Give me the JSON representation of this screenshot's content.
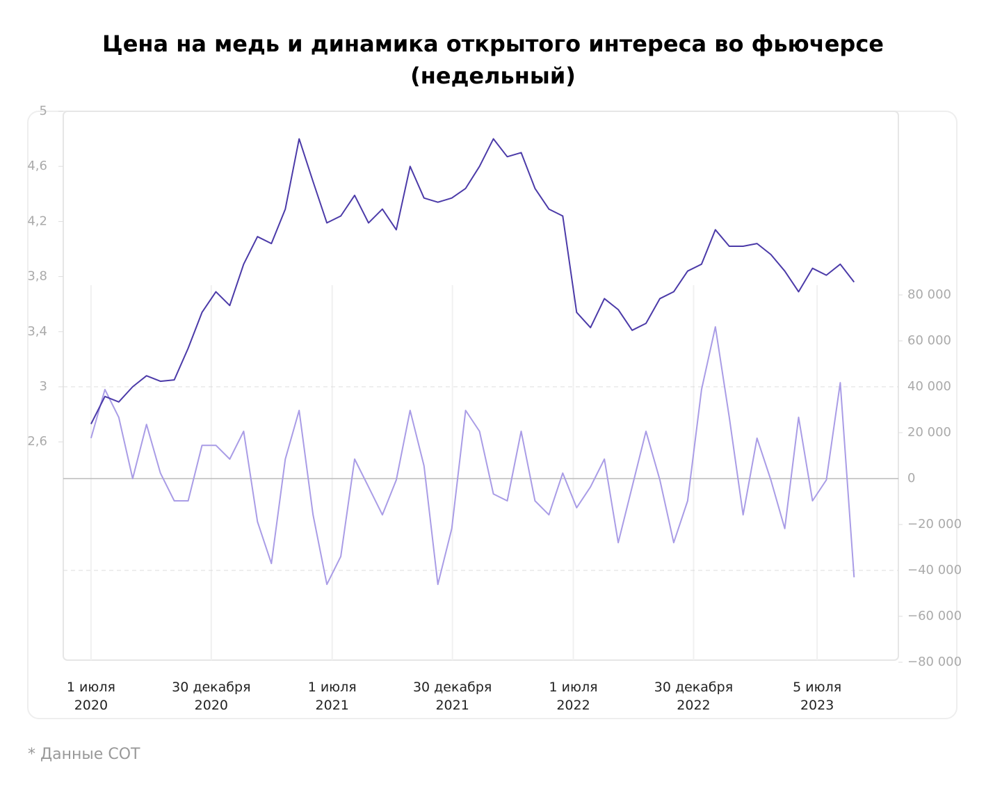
{
  "chart_data": {
    "type": "line",
    "title": "Цена на медь и динамика открытого интереса во фьючерсе (недельный)",
    "note": "* Данные COT",
    "x": [
      "2020-07-01",
      "2020-07-22",
      "2020-08-12",
      "2020-09-02",
      "2020-09-23",
      "2020-10-14",
      "2020-11-04",
      "2020-11-25",
      "2020-12-16",
      "2021-01-06",
      "2021-01-27",
      "2021-02-17",
      "2021-03-10",
      "2021-03-31",
      "2021-04-21",
      "2021-05-12",
      "2021-06-02",
      "2021-06-23",
      "2021-07-14",
      "2021-08-04",
      "2021-08-25",
      "2021-09-15",
      "2021-10-06",
      "2021-10-27",
      "2021-11-17",
      "2021-12-08",
      "2021-12-29",
      "2022-01-19",
      "2022-02-09",
      "2022-03-02",
      "2022-03-23",
      "2022-04-13",
      "2022-05-04",
      "2022-05-25",
      "2022-06-15",
      "2022-07-06",
      "2022-07-27",
      "2022-08-17",
      "2022-09-07",
      "2022-09-28",
      "2022-10-19",
      "2022-11-09",
      "2022-11-30",
      "2022-12-21",
      "2023-01-11",
      "2023-02-01",
      "2023-02-22",
      "2023-03-15",
      "2023-04-05",
      "2023-04-26",
      "2023-05-17",
      "2023-06-07",
      "2023-06-28",
      "2023-07-19",
      "2023-08-09",
      "2023-08-30"
    ],
    "xlim": [
      "2020-05-20",
      "2023-11-05"
    ],
    "xticks": [
      {
        "value": "2020-07-01",
        "label": "1 июля 2020"
      },
      {
        "value": "2020-12-30",
        "label": "30 декабря 2020"
      },
      {
        "value": "2021-07-01",
        "label": "1 июля 2021"
      },
      {
        "value": "2021-12-30",
        "label": "30 декабря 2021"
      },
      {
        "value": "2022-07-01",
        "label": "1 июля 2022"
      },
      {
        "value": "2022-12-30",
        "label": "30 декабря 2022"
      },
      {
        "value": "2023-07-05",
        "label": "5 июля 2023"
      }
    ],
    "ylim": [
      1,
      5
    ],
    "yticks": [
      {
        "value": 2.6,
        "label": "2,6"
      },
      3,
      {
        "value": 3.4,
        "label": "3,4"
      },
      {
        "value": 3.8,
        "label": "3,8"
      },
      {
        "value": 4.2,
        "label": "4,2"
      },
      {
        "value": 4.6,
        "label": "4,6"
      },
      5
    ],
    "y2lim": [
      -80000,
      160000
    ],
    "y2ticks": [
      {
        "value": -80000,
        "label": "−80 000"
      },
      {
        "value": -60000,
        "label": "−60 000"
      },
      {
        "value": -40000,
        "label": "−40 000"
      },
      {
        "value": -20000,
        "label": "−20 000"
      },
      0,
      {
        "value": 20000,
        "label": "20 000"
      },
      {
        "value": 40000,
        "label": "40 000"
      },
      {
        "value": 60000,
        "label": "60 000"
      },
      {
        "value": 80000,
        "label": "80 000"
      }
    ],
    "series": [
      {
        "color": "#4b3aa8",
        "values": [
          2.73,
          2.93,
          2.89,
          3.0,
          3.08,
          3.04,
          3.05,
          3.28,
          3.54,
          3.69,
          3.59,
          3.89,
          4.09,
          4.04,
          4.29,
          4.8,
          4.49,
          4.19,
          4.24,
          4.39,
          4.19,
          4.29,
          4.14,
          4.6,
          4.37,
          4.34,
          4.37,
          4.44,
          4.6,
          4.8,
          4.67,
          4.7,
          4.44,
          4.29,
          4.24,
          3.54,
          3.43,
          3.64,
          3.56,
          3.41,
          3.46,
          3.64,
          3.69,
          3.84,
          3.89,
          4.14,
          4.02,
          4.02,
          4.04,
          3.96,
          3.84,
          3.69,
          3.86,
          3.81,
          3.89,
          3.76
        ]
      },
      {
        "color": "#a99ce6",
        "axis": "y2",
        "values": [
          17600,
          38800,
          26700,
          0,
          23600,
          2400,
          -9700,
          -9700,
          14500,
          14500,
          8500,
          20600,
          -18800,
          -37000,
          8500,
          29700,
          -15800,
          -46100,
          -33900,
          8500,
          -3600,
          -15800,
          -600,
          29700,
          5500,
          -46100,
          -21800,
          29700,
          20600,
          -6700,
          -9700,
          20600,
          -9700,
          -15800,
          2400,
          -12700,
          -3600,
          8500,
          -27900,
          -3600,
          20600,
          -600,
          -27900,
          -9700,
          38800,
          66100,
          26700,
          -15800,
          17600,
          -600,
          -21800,
          26700,
          -9700,
          -600,
          41800,
          -43000
        ]
      }
    ]
  }
}
